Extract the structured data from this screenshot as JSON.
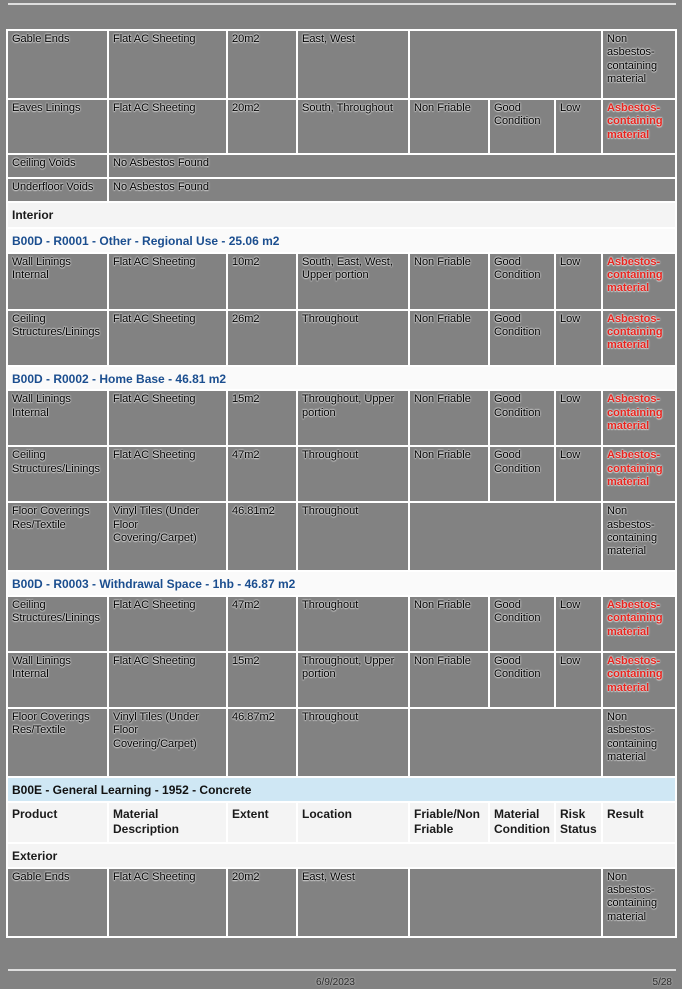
{
  "document": {
    "footer": {
      "date": "6/9/2023",
      "page_number": "5/28"
    }
  },
  "colors": {
    "cell_background": "#828282",
    "section_background": "#f4f4f4",
    "building_header_background": "#cfe7f4",
    "room_header_text": "#1b4e8f",
    "asbestos_result_text": "#e8251f",
    "border": "#ffffff"
  },
  "table": {
    "columns": [
      "Product",
      "Material Description",
      "Extent",
      "Location",
      "Friable/Non Friable",
      "Material Condition",
      "Risk Status",
      "Result"
    ],
    "rows": [
      {
        "type": "data",
        "product": "Gable Ends",
        "material": "Flat AC Sheeting",
        "extent": "20m2",
        "location": "East, West",
        "friable": null,
        "condition": null,
        "risk": null,
        "result": "Non asbestos-containing material",
        "acm": false
      },
      {
        "type": "data",
        "product": "Eaves Linings",
        "material": "Flat AC Sheeting",
        "extent": "20m2",
        "location": "South, Throughout",
        "friable": "Non Friable",
        "condition": "Good Condition",
        "risk": "Low",
        "result": "Asbestos-containing material",
        "acm": true
      },
      {
        "type": "span",
        "label": "Ceiling Voids",
        "value": "No Asbestos Found"
      },
      {
        "type": "span",
        "label": "Underfloor Voids",
        "value": "No Asbestos Found"
      },
      {
        "type": "section",
        "label": "Interior"
      },
      {
        "type": "room",
        "label": "B00D - R0001 - Other - Regional Use - 25.06 m2"
      },
      {
        "type": "data",
        "product": "Wall Linings Internal",
        "material": "Flat AC Sheeting",
        "extent": "10m2",
        "location": "South, East, West, Upper portion",
        "friable": "Non Friable",
        "condition": "Good Condition",
        "risk": "Low",
        "result": "Asbestos-containing material",
        "acm": true
      },
      {
        "type": "data",
        "product": "Ceiling Structures/Linings",
        "material": "Flat AC Sheeting",
        "extent": "26m2",
        "location": "Throughout",
        "friable": "Non Friable",
        "condition": "Good Condition",
        "risk": "Low",
        "result": "Asbestos-containing material",
        "acm": true
      },
      {
        "type": "room",
        "label": "B00D - R0002 - Home Base - 46.81 m2"
      },
      {
        "type": "data",
        "product": "Wall Linings Internal",
        "material": "Flat AC Sheeting",
        "extent": "15m2",
        "location": "Throughout, Upper portion",
        "friable": "Non Friable",
        "condition": "Good Condition",
        "risk": "Low",
        "result": "Asbestos-containing material",
        "acm": true
      },
      {
        "type": "data",
        "product": "Ceiling Structures/Linings",
        "material": "Flat AC Sheeting",
        "extent": "47m2",
        "location": "Throughout",
        "friable": "Non Friable",
        "condition": "Good Condition",
        "risk": "Low",
        "result": "Asbestos-containing material",
        "acm": true
      },
      {
        "type": "data",
        "product": "Floor Coverings Res/Textile",
        "material": "Vinyl Tiles (Under Floor Covering/Carpet)",
        "extent": "46.81m2",
        "location": "Throughout",
        "friable": null,
        "condition": null,
        "risk": null,
        "result": "Non asbestos-containing material",
        "acm": false
      },
      {
        "type": "room",
        "label": "B00D - R0003 - Withdrawal Space - 1hb - 46.87 m2"
      },
      {
        "type": "data",
        "product": "Ceiling Structures/Linings",
        "material": "Flat AC Sheeting",
        "extent": "47m2",
        "location": "Throughout",
        "friable": "Non Friable",
        "condition": "Good Condition",
        "risk": "Low",
        "result": "Asbestos-containing material",
        "acm": true
      },
      {
        "type": "data",
        "product": "Wall Linings Internal",
        "material": "Flat AC Sheeting",
        "extent": "15m2",
        "location": "Throughout, Upper portion",
        "friable": "Non Friable",
        "condition": "Good Condition",
        "risk": "Low",
        "result": "Asbestos-containing material",
        "acm": true
      },
      {
        "type": "data",
        "product": "Floor Coverings Res/Textile",
        "material": "Vinyl Tiles (Under Floor Covering/Carpet)",
        "extent": "46.87m2",
        "location": "Throughout",
        "friable": null,
        "condition": null,
        "risk": null,
        "result": "Non asbestos-containing material",
        "acm": false
      },
      {
        "type": "building",
        "label": "B00E - General Learning - 1952 - Concrete"
      },
      {
        "type": "colhead"
      },
      {
        "type": "section",
        "label": "Exterior"
      },
      {
        "type": "data",
        "product": "Gable Ends",
        "material": "Flat AC Sheeting",
        "extent": "20m2",
        "location": "East, West",
        "friable": null,
        "condition": null,
        "risk": null,
        "result": "Non asbestos-containing material",
        "acm": false
      }
    ]
  }
}
